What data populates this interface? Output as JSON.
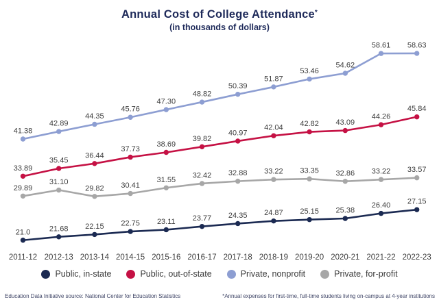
{
  "title": "Annual Cost of College Attendance",
  "title_marker": "*",
  "subtitle": "(in thousands of dollars)",
  "chart_data": {
    "type": "line",
    "title": "Annual Cost of College Attendance*",
    "subtitle": "(in thousands of dollars)",
    "categories": [
      "2011-12",
      "2012-13",
      "2013-14",
      "2014-15",
      "2015-16",
      "2016-17",
      "2017-18",
      "2018-19",
      "2019-20",
      "2020-21",
      "2021-22",
      "2022-23"
    ],
    "series": [
      {
        "name": "Public, in-state",
        "color": "#1b2a52",
        "values": [
          21.0,
          21.68,
          22.15,
          22.75,
          23.11,
          23.77,
          24.35,
          24.87,
          25.15,
          25.38,
          26.4,
          27.15
        ],
        "labels": [
          "21.0",
          "21.68",
          "22.15",
          "22.75",
          "23.11",
          "23.77",
          "24.35",
          "24.87",
          "25.15",
          "25.38",
          "26.40",
          "27.15"
        ]
      },
      {
        "name": "Public, out-of-state",
        "color": "#c51144",
        "values": [
          33.89,
          35.45,
          36.44,
          37.73,
          38.69,
          39.82,
          40.97,
          42.04,
          42.82,
          43.09,
          44.26,
          45.84
        ],
        "labels": [
          "33.89",
          "35.45",
          "36.44",
          "37.73",
          "38.69",
          "39.82",
          "40.97",
          "42.04",
          "42.82",
          "43.09",
          "44.26",
          "45.84"
        ]
      },
      {
        "name": "Private, nonprofit",
        "color": "#8d9ed2",
        "values": [
          41.38,
          42.89,
          44.35,
          45.76,
          47.3,
          48.82,
          50.39,
          51.87,
          53.46,
          54.62,
          58.61,
          58.63
        ],
        "labels": [
          "41.38",
          "42.89",
          "44.35",
          "45.76",
          "47.30",
          "48.82",
          "50.39",
          "51.87",
          "53.46",
          "54.62",
          "58.61",
          "58.63"
        ]
      },
      {
        "name": "Private, for-profit",
        "color": "#a7a7a7",
        "values": [
          29.89,
          31.1,
          29.82,
          30.41,
          31.55,
          32.42,
          32.88,
          33.22,
          33.35,
          32.86,
          33.22,
          33.57
        ],
        "labels": [
          "29.89",
          "31.10",
          "29.82",
          "30.41",
          "31.55",
          "32.42",
          "32.88",
          "33.22",
          "33.35",
          "32.86",
          "33.22",
          "33.57"
        ]
      }
    ],
    "ylim": [
      20,
      60
    ],
    "grid": false,
    "axes_shown": false,
    "legend_position": "bottom",
    "label_color": "#3d3d3d"
  },
  "footnotes": {
    "source": "Education Data Initiative source: National Center for Education Statistics",
    "note": "*Annual expenses for first-time, full-time students living on-campus at 4-year institutions"
  }
}
